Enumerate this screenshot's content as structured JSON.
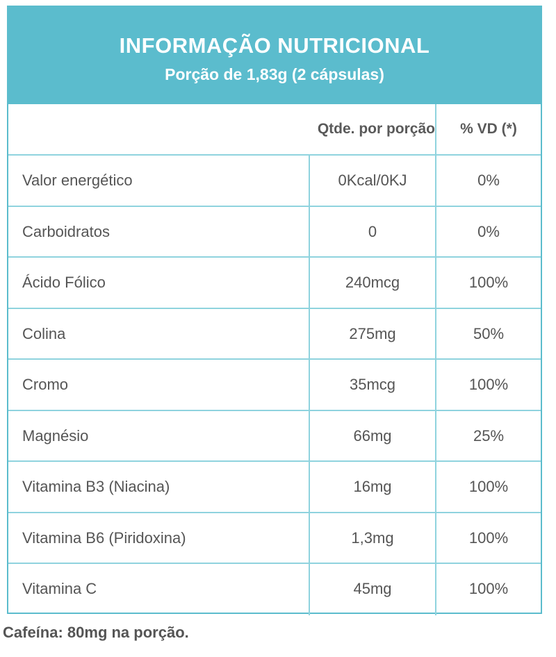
{
  "header": {
    "title": "INFORMAÇÃO NUTRICIONAL",
    "subtitle": "Porção de 1,83g (2 cápsulas)"
  },
  "columns": {
    "qty": "Qtde. por porção",
    "vd": "% VD (*)"
  },
  "rows": [
    {
      "name": "Valor energético",
      "qty": "0Kcal/0KJ",
      "vd": "0%"
    },
    {
      "name": "Carboidratos",
      "qty": "0",
      "vd": "0%"
    },
    {
      "name": "Ácido Fólico",
      "qty": "240mcg",
      "vd": "100%"
    },
    {
      "name": "Colina",
      "qty": "275mg",
      "vd": "50%"
    },
    {
      "name": "Cromo",
      "qty": "35mcg",
      "vd": "100%"
    },
    {
      "name": "Magnésio",
      "qty": "66mg",
      "vd": "25%"
    },
    {
      "name": "Vitamina B3 (Niacina)",
      "qty": "16mg",
      "vd": "100%"
    },
    {
      "name": "Vitamina B6 (Piridoxina)",
      "qty": "1,3mg",
      "vd": "100%"
    },
    {
      "name": "Vitamina C",
      "qty": "45mg",
      "vd": "100%"
    }
  ],
  "footnote": "Cafeína: 80mg na porção.",
  "colors": {
    "header_bg": "#5bbccd",
    "border": "#8fd3de",
    "text": "#555555"
  }
}
